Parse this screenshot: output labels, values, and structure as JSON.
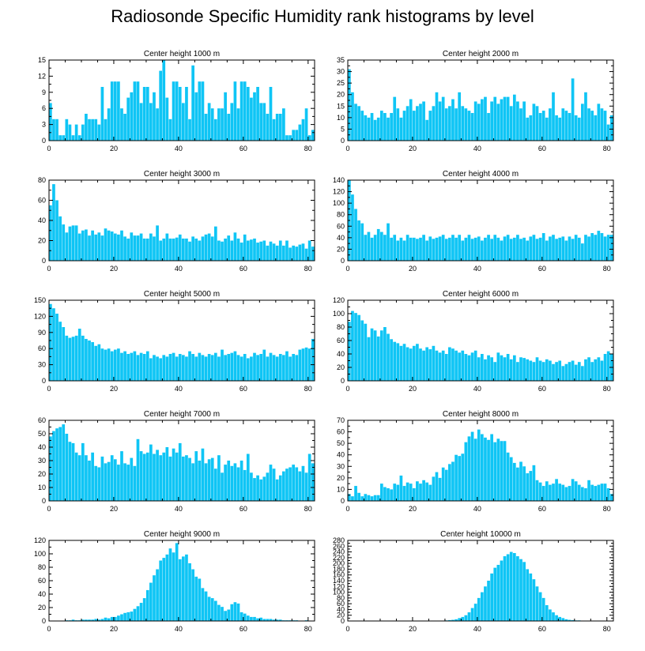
{
  "figure": {
    "title": "Radiosonde Specific Humidity rank histograms by level"
  },
  "chart_data": [
    {
      "type": "bar",
      "title": "Center height 1000 m",
      "xlim": [
        0,
        82
      ],
      "ylim": [
        0,
        15
      ],
      "xticks": [
        0,
        20,
        40,
        60,
        80
      ],
      "yticks": [
        0,
        3,
        6,
        9,
        12,
        15
      ],
      "bar_color": "#0fc5f5",
      "values": [
        7,
        4,
        4,
        1,
        1,
        4,
        3,
        1,
        3,
        1,
        3,
        5,
        4,
        4,
        4,
        3,
        10,
        4,
        6,
        11,
        11,
        11,
        6,
        5,
        8,
        9,
        11,
        11,
        7,
        10,
        10,
        7,
        9,
        6,
        13,
        15,
        8,
        4,
        11,
        11,
        10,
        7,
        10,
        4,
        14,
        9,
        11,
        11,
        5,
        7,
        6,
        4,
        6,
        6,
        9,
        5,
        7,
        11,
        6,
        11,
        11,
        10,
        8,
        9,
        10,
        7,
        7,
        5,
        10,
        4,
        5,
        5,
        6,
        1,
        1,
        2,
        2,
        3,
        4,
        6,
        1,
        2
      ]
    },
    {
      "type": "bar",
      "title": "Center height 2000 m",
      "xlim": [
        0,
        82
      ],
      "ylim": [
        0,
        35
      ],
      "xticks": [
        0,
        20,
        40,
        60,
        80
      ],
      "yticks": [
        0,
        5,
        10,
        15,
        20,
        25,
        30,
        35
      ],
      "bar_color": "#0fc5f5",
      "values": [
        31,
        21,
        16,
        15,
        13,
        11,
        10,
        12,
        9,
        10,
        13,
        12,
        10,
        12,
        19,
        14,
        10,
        13,
        15,
        18,
        13,
        15,
        16,
        17,
        9,
        13,
        15,
        21,
        17,
        19,
        14,
        15,
        18,
        14,
        21,
        15,
        14,
        13,
        12,
        17,
        16,
        18,
        19,
        12,
        17,
        19,
        16,
        18,
        19,
        19,
        15,
        20,
        17,
        14,
        17,
        10,
        11,
        16,
        15,
        12,
        13,
        10,
        14,
        21,
        11,
        10,
        14,
        13,
        12,
        27,
        11,
        10,
        16,
        21,
        14,
        13,
        11,
        16,
        14,
        13,
        7,
        11
      ]
    },
    {
      "type": "bar",
      "title": "Center height 3000 m",
      "xlim": [
        0,
        82
      ],
      "ylim": [
        0,
        80
      ],
      "xticks": [
        0,
        20,
        40,
        60,
        80
      ],
      "yticks": [
        0,
        20,
        40,
        60,
        80
      ],
      "bar_color": "#0fc5f5",
      "values": [
        55,
        76,
        60,
        44,
        36,
        28,
        34,
        35,
        35,
        27,
        30,
        31,
        25,
        30,
        26,
        28,
        25,
        32,
        30,
        29,
        27,
        26,
        30,
        24,
        22,
        28,
        25,
        25,
        27,
        22,
        22,
        27,
        24,
        35,
        20,
        22,
        27,
        22,
        22,
        23,
        26,
        22,
        22,
        19,
        24,
        22,
        20,
        24,
        26,
        27,
        24,
        34,
        20,
        19,
        22,
        25,
        20,
        28,
        22,
        18,
        26,
        20,
        21,
        22,
        18,
        19,
        20,
        15,
        19,
        17,
        15,
        20,
        15,
        20,
        13,
        15,
        14,
        16,
        17,
        12,
        20,
        14
      ]
    },
    {
      "type": "bar",
      "title": "Center height 4000 m",
      "xlim": [
        0,
        82
      ],
      "ylim": [
        0,
        140
      ],
      "xticks": [
        0,
        20,
        40,
        60,
        80
      ],
      "yticks": [
        0,
        20,
        40,
        60,
        80,
        100,
        120,
        140
      ],
      "bar_color": "#0fc5f5",
      "values": [
        140,
        115,
        90,
        70,
        65,
        45,
        50,
        40,
        45,
        55,
        50,
        45,
        65,
        40,
        45,
        35,
        40,
        35,
        45,
        40,
        40,
        38,
        40,
        45,
        35,
        42,
        38,
        40,
        42,
        45,
        38,
        40,
        45,
        40,
        45,
        35,
        40,
        45,
        38,
        40,
        42,
        35,
        40,
        45,
        38,
        45,
        40,
        35,
        42,
        45,
        38,
        40,
        45,
        38,
        40,
        35,
        42,
        45,
        38,
        40,
        48,
        35,
        42,
        45,
        38,
        40,
        42,
        35,
        42,
        38,
        45,
        40,
        30,
        45,
        42,
        48,
        45,
        52,
        48,
        42,
        45,
        45
      ]
    },
    {
      "type": "bar",
      "title": "Center height 5000 m",
      "xlim": [
        0,
        82
      ],
      "ylim": [
        0,
        150
      ],
      "xticks": [
        0,
        20,
        40,
        60,
        80
      ],
      "yticks": [
        0,
        30,
        60,
        90,
        120,
        150
      ],
      "bar_color": "#0fc5f5",
      "values": [
        143,
        135,
        125,
        110,
        100,
        84,
        80,
        82,
        84,
        97,
        84,
        78,
        75,
        72,
        65,
        68,
        60,
        58,
        60,
        55,
        58,
        60,
        52,
        55,
        50,
        52,
        55,
        48,
        52,
        50,
        55,
        42,
        48,
        45,
        42,
        48,
        45,
        50,
        52,
        45,
        50,
        48,
        45,
        55,
        50,
        45,
        52,
        48,
        45,
        50,
        48,
        52,
        45,
        58,
        48,
        50,
        52,
        55,
        48,
        45,
        50,
        42,
        45,
        52,
        48,
        50,
        58,
        45,
        52,
        48,
        45,
        50,
        48,
        55,
        45,
        50,
        48,
        58,
        60,
        62,
        60,
        78
      ]
    },
    {
      "type": "bar",
      "title": "Center height 6000 m",
      "xlim": [
        0,
        82
      ],
      "ylim": [
        0,
        120
      ],
      "xticks": [
        0,
        20,
        40,
        60,
        80
      ],
      "yticks": [
        0,
        20,
        40,
        60,
        80,
        100,
        120
      ],
      "bar_color": "#0fc5f5",
      "values": [
        88,
        104,
        101,
        98,
        90,
        85,
        65,
        78,
        75,
        66,
        75,
        80,
        70,
        62,
        58,
        56,
        52,
        55,
        50,
        48,
        52,
        55,
        48,
        45,
        50,
        47,
        52,
        45,
        42,
        45,
        40,
        50,
        48,
        45,
        42,
        45,
        40,
        38,
        42,
        45,
        35,
        40,
        32,
        38,
        35,
        28,
        42,
        38,
        35,
        40,
        32,
        38,
        28,
        35,
        34,
        32,
        30,
        28,
        35,
        30,
        28,
        32,
        30,
        25,
        28,
        30,
        22,
        25,
        28,
        30,
        24,
        28,
        22,
        32,
        35,
        28,
        32,
        35,
        30,
        40,
        44,
        40
      ]
    },
    {
      "type": "bar",
      "title": "Center height 7000 m",
      "xlim": [
        0,
        82
      ],
      "ylim": [
        0,
        60
      ],
      "xticks": [
        0,
        20,
        40,
        60,
        80
      ],
      "yticks": [
        0,
        10,
        20,
        30,
        40,
        50,
        60
      ],
      "bar_color": "#0fc5f5",
      "values": [
        48,
        52,
        54,
        55,
        57,
        50,
        44,
        43,
        36,
        34,
        43,
        34,
        30,
        36,
        26,
        25,
        33,
        28,
        29,
        34,
        31,
        27,
        37,
        28,
        27,
        32,
        26,
        46,
        37,
        35,
        36,
        42,
        35,
        38,
        34,
        36,
        40,
        33,
        39,
        36,
        43,
        33,
        34,
        32,
        28,
        37,
        30,
        39,
        28,
        31,
        32,
        24,
        34,
        21,
        27,
        30,
        26,
        28,
        25,
        30,
        23,
        35,
        21,
        17,
        19,
        16,
        18,
        21,
        27,
        24,
        16,
        19,
        22,
        24,
        25,
        27,
        25,
        22,
        26,
        21,
        35,
        28
      ]
    },
    {
      "type": "bar",
      "title": "Center height 8000 m",
      "xlim": [
        0,
        82
      ],
      "ylim": [
        0,
        70
      ],
      "xticks": [
        0,
        20,
        40,
        60,
        80
      ],
      "yticks": [
        0,
        10,
        20,
        30,
        40,
        50,
        60,
        70
      ],
      "bar_color": "#0fc5f5",
      "values": [
        6,
        4,
        13,
        7,
        4,
        6,
        5,
        4,
        5,
        5,
        15,
        12,
        11,
        10,
        15,
        14,
        22,
        13,
        16,
        15,
        11,
        17,
        15,
        18,
        16,
        14,
        21,
        25,
        20,
        29,
        27,
        32,
        34,
        40,
        39,
        41,
        51,
        56,
        60,
        54,
        62,
        58,
        55,
        53,
        58,
        51,
        54,
        52,
        52,
        42,
        38,
        33,
        29,
        34,
        30,
        24,
        26,
        31,
        18,
        16,
        13,
        17,
        14,
        15,
        19,
        15,
        14,
        12,
        13,
        19,
        17,
        14,
        12,
        11,
        18,
        14,
        13,
        14,
        15,
        15,
        11,
        6
      ]
    },
    {
      "type": "bar",
      "title": "Center height 9000 m",
      "xlim": [
        0,
        82
      ],
      "ylim": [
        0,
        120
      ],
      "xticks": [
        0,
        20,
        40,
        60,
        80
      ],
      "yticks": [
        0,
        20,
        40,
        60,
        80,
        100,
        120
      ],
      "bar_color": "#0fc5f5",
      "values": [
        0,
        0,
        0,
        0,
        0,
        1,
        1,
        2,
        1,
        1,
        2,
        2,
        2,
        2,
        3,
        2,
        3,
        5,
        4,
        6,
        6,
        8,
        10,
        12,
        13,
        14,
        18,
        22,
        27,
        34,
        46,
        57,
        68,
        77,
        90,
        94,
        99,
        108,
        102,
        116,
        92,
        96,
        99,
        86,
        77,
        66,
        63,
        49,
        44,
        36,
        34,
        30,
        24,
        21,
        15,
        17,
        25,
        28,
        26,
        13,
        11,
        8,
        6,
        6,
        4,
        5,
        3,
        3,
        3,
        2,
        2,
        2,
        1,
        1,
        1,
        1,
        1,
        0,
        0,
        1,
        0,
        0
      ]
    },
    {
      "type": "bar",
      "title": "Center height 10000 m",
      "xlim": [
        0,
        82
      ],
      "ylim": [
        0,
        280
      ],
      "xticks": [
        0,
        20,
        40,
        60,
        80
      ],
      "yticks": [
        0,
        20,
        40,
        60,
        80,
        100,
        120,
        140,
        160,
        180,
        200,
        220,
        240,
        260,
        280
      ],
      "bar_color": "#0fc5f5",
      "values": [
        0,
        0,
        0,
        0,
        0,
        0,
        0,
        0,
        0,
        0,
        0,
        0,
        0,
        0,
        0,
        0,
        0,
        0,
        0,
        0,
        0,
        0,
        0,
        0,
        0,
        0,
        0,
        0,
        0,
        1,
        2,
        3,
        4,
        6,
        10,
        14,
        20,
        30,
        45,
        60,
        80,
        100,
        120,
        140,
        165,
        185,
        195,
        210,
        225,
        232,
        240,
        236,
        225,
        215,
        205,
        180,
        165,
        145,
        120,
        100,
        80,
        55,
        40,
        30,
        20,
        14,
        10,
        6,
        4,
        3,
        2,
        2,
        1,
        1,
        1,
        1,
        0,
        0,
        0,
        0,
        0,
        0
      ]
    }
  ]
}
